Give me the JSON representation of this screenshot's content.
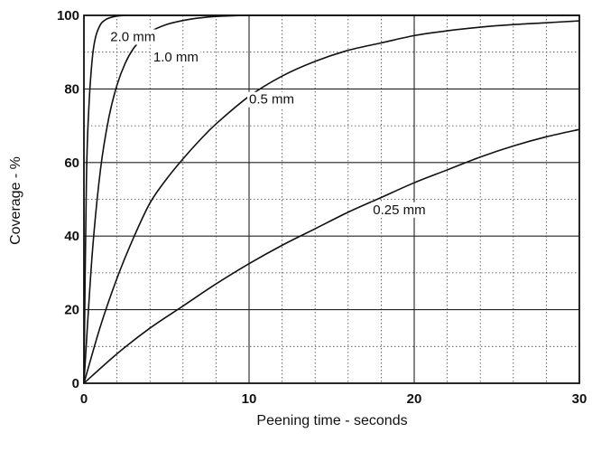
{
  "chart_data": {
    "type": "line",
    "title": "",
    "xlabel": "Peening time - seconds",
    "ylabel": "Coverage - %",
    "xlim": [
      0,
      30
    ],
    "ylim": [
      0,
      100
    ],
    "x_ticks": [
      "0",
      "10",
      "20",
      "30"
    ],
    "y_ticks": [
      "0",
      "20",
      "40",
      "60",
      "80",
      "100"
    ],
    "grid": true,
    "series": [
      {
        "name": "2.0 mm",
        "x": [
          0,
          0.15,
          0.3,
          0.5,
          0.7,
          1.0,
          1.3,
          1.6,
          2.0,
          2.5,
          3.0,
          4.0,
          30
        ],
        "y": [
          0,
          55,
          75,
          88,
          94,
          97.5,
          98.8,
          99.4,
          99.8,
          100,
          100,
          100,
          100
        ],
        "label_at": [
          1.6,
          93
        ]
      },
      {
        "name": "1.0 mm",
        "x": [
          0,
          0.5,
          1.0,
          1.5,
          2.0,
          2.5,
          3.0,
          3.5,
          4.0,
          5.0,
          6.0,
          7.0,
          8.0,
          10.0,
          12.0,
          30
        ],
        "y": [
          0,
          35,
          58,
          72,
          81,
          87,
          91,
          93.5,
          95.5,
          97.5,
          98.6,
          99.3,
          99.7,
          100,
          100,
          100
        ],
        "label_at": [
          4.2,
          87.5
        ]
      },
      {
        "name": "0.5 mm",
        "x": [
          0,
          1,
          2,
          3,
          4,
          5,
          6,
          7,
          8,
          10,
          12,
          14,
          16,
          18,
          20,
          22,
          24,
          26,
          28,
          30
        ],
        "y": [
          0,
          15.5,
          28.5,
          39.5,
          49,
          55.5,
          61,
          66,
          70.5,
          78,
          83.5,
          87.5,
          90.5,
          92.5,
          94.5,
          95.8,
          96.8,
          97.5,
          98,
          98.5
        ],
        "label_at": [
          10,
          76
        ]
      },
      {
        "name": "0.25 mm",
        "x": [
          0,
          2,
          4,
          6,
          8,
          10,
          12,
          14,
          16,
          18,
          20,
          22,
          24,
          26,
          28,
          30
        ],
        "y": [
          0,
          8,
          15,
          21,
          27,
          32.5,
          37.5,
          42,
          46.5,
          50.5,
          54.5,
          58,
          61.5,
          64.5,
          67,
          69
        ],
        "label_at": [
          17.5,
          46
        ]
      }
    ]
  }
}
